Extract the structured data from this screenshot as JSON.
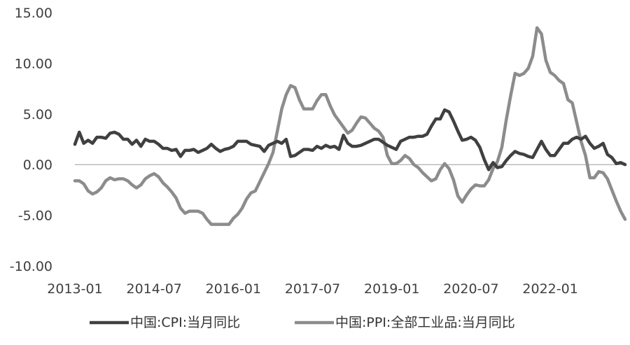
{
  "chart_data": {
    "type": "line",
    "title": "",
    "xlabel": "",
    "ylabel": "",
    "ylim": [
      -10,
      15
    ],
    "yticks": [
      15,
      10,
      5,
      0,
      -5,
      -10
    ],
    "ytick_labels": [
      "15.00",
      "10.00",
      "5.00",
      "0.00",
      "-5.00",
      "-10.00"
    ],
    "xticks": [
      "2013-01",
      "2014-07",
      "2016-01",
      "2017-07",
      "2019-01",
      "2020-07",
      "2022-01"
    ],
    "x_start": "2013-01",
    "x_end": "2023-05",
    "grid": false,
    "legend_position": "bottom",
    "series": [
      {
        "name": "中国:CPI:当月同比",
        "color": "#404040",
        "points": [
          [
            "2013-01",
            2.0
          ],
          [
            "2013-02",
            3.2
          ],
          [
            "2013-03",
            2.1
          ],
          [
            "2013-04",
            2.4
          ],
          [
            "2013-05",
            2.1
          ],
          [
            "2013-06",
            2.7
          ],
          [
            "2013-07",
            2.7
          ],
          [
            "2013-08",
            2.6
          ],
          [
            "2013-09",
            3.1
          ],
          [
            "2013-10",
            3.2
          ],
          [
            "2013-11",
            3.0
          ],
          [
            "2013-12",
            2.5
          ],
          [
            "2014-01",
            2.5
          ],
          [
            "2014-02",
            2.0
          ],
          [
            "2014-03",
            2.4
          ],
          [
            "2014-04",
            1.8
          ],
          [
            "2014-05",
            2.5
          ],
          [
            "2014-06",
            2.3
          ],
          [
            "2014-07",
            2.3
          ],
          [
            "2014-08",
            2.0
          ],
          [
            "2014-09",
            1.6
          ],
          [
            "2014-10",
            1.6
          ],
          [
            "2014-11",
            1.4
          ],
          [
            "2014-12",
            1.5
          ],
          [
            "2015-01",
            0.8
          ],
          [
            "2015-02",
            1.4
          ],
          [
            "2015-03",
            1.4
          ],
          [
            "2015-04",
            1.5
          ],
          [
            "2015-05",
            1.2
          ],
          [
            "2015-06",
            1.4
          ],
          [
            "2015-07",
            1.6
          ],
          [
            "2015-08",
            2.0
          ],
          [
            "2015-09",
            1.6
          ],
          [
            "2015-10",
            1.3
          ],
          [
            "2015-11",
            1.5
          ],
          [
            "2015-12",
            1.6
          ],
          [
            "2016-01",
            1.8
          ],
          [
            "2016-02",
            2.3
          ],
          [
            "2016-03",
            2.3
          ],
          [
            "2016-04",
            2.3
          ],
          [
            "2016-05",
            2.0
          ],
          [
            "2016-06",
            1.9
          ],
          [
            "2016-07",
            1.8
          ],
          [
            "2016-08",
            1.3
          ],
          [
            "2016-09",
            1.9
          ],
          [
            "2016-10",
            2.1
          ],
          [
            "2016-11",
            2.3
          ],
          [
            "2016-12",
            2.1
          ],
          [
            "2017-01",
            2.5
          ],
          [
            "2017-02",
            0.8
          ],
          [
            "2017-03",
            0.9
          ],
          [
            "2017-04",
            1.2
          ],
          [
            "2017-05",
            1.5
          ],
          [
            "2017-06",
            1.5
          ],
          [
            "2017-07",
            1.4
          ],
          [
            "2017-08",
            1.8
          ],
          [
            "2017-09",
            1.6
          ],
          [
            "2017-10",
            1.9
          ],
          [
            "2017-11",
            1.7
          ],
          [
            "2017-12",
            1.8
          ],
          [
            "2018-01",
            1.5
          ],
          [
            "2018-02",
            2.9
          ],
          [
            "2018-03",
            2.1
          ],
          [
            "2018-04",
            1.8
          ],
          [
            "2018-05",
            1.8
          ],
          [
            "2018-06",
            1.9
          ],
          [
            "2018-07",
            2.1
          ],
          [
            "2018-08",
            2.3
          ],
          [
            "2018-09",
            2.5
          ],
          [
            "2018-10",
            2.5
          ],
          [
            "2018-11",
            2.2
          ],
          [
            "2018-12",
            1.9
          ],
          [
            "2019-01",
            1.7
          ],
          [
            "2019-02",
            1.5
          ],
          [
            "2019-03",
            2.3
          ],
          [
            "2019-04",
            2.5
          ],
          [
            "2019-05",
            2.7
          ],
          [
            "2019-06",
            2.7
          ],
          [
            "2019-07",
            2.8
          ],
          [
            "2019-08",
            2.8
          ],
          [
            "2019-09",
            3.0
          ],
          [
            "2019-10",
            3.8
          ],
          [
            "2019-11",
            4.5
          ],
          [
            "2019-12",
            4.5
          ],
          [
            "2020-01",
            5.4
          ],
          [
            "2020-02",
            5.2
          ],
          [
            "2020-03",
            4.3
          ],
          [
            "2020-04",
            3.3
          ],
          [
            "2020-05",
            2.4
          ],
          [
            "2020-06",
            2.5
          ],
          [
            "2020-07",
            2.7
          ],
          [
            "2020-08",
            2.4
          ],
          [
            "2020-09",
            1.7
          ],
          [
            "2020-10",
            0.5
          ],
          [
            "2020-11",
            -0.5
          ],
          [
            "2020-12",
            0.2
          ],
          [
            "2021-01",
            -0.3
          ],
          [
            "2021-02",
            -0.2
          ],
          [
            "2021-03",
            0.4
          ],
          [
            "2021-04",
            0.9
          ],
          [
            "2021-05",
            1.3
          ],
          [
            "2021-06",
            1.1
          ],
          [
            "2021-07",
            1.0
          ],
          [
            "2021-08",
            0.8
          ],
          [
            "2021-09",
            0.7
          ],
          [
            "2021-10",
            1.5
          ],
          [
            "2021-11",
            2.3
          ],
          [
            "2021-12",
            1.5
          ],
          [
            "2022-01",
            0.9
          ],
          [
            "2022-02",
            0.9
          ],
          [
            "2022-03",
            1.5
          ],
          [
            "2022-04",
            2.1
          ],
          [
            "2022-05",
            2.1
          ],
          [
            "2022-06",
            2.5
          ],
          [
            "2022-07",
            2.7
          ],
          [
            "2022-08",
            2.5
          ],
          [
            "2022-09",
            2.8
          ],
          [
            "2022-10",
            2.1
          ],
          [
            "2022-11",
            1.6
          ],
          [
            "2022-12",
            1.8
          ],
          [
            "2023-01",
            2.1
          ],
          [
            "2023-02",
            1.0
          ],
          [
            "2023-03",
            0.7
          ],
          [
            "2023-04",
            0.1
          ],
          [
            "2023-05",
            0.2
          ],
          [
            "2023-06",
            0.0
          ]
        ]
      },
      {
        "name": "中国:PPI:全部工业品:当月同比",
        "color": "#8c8c8c",
        "points": [
          [
            "2013-01",
            -1.6
          ],
          [
            "2013-02",
            -1.6
          ],
          [
            "2013-03",
            -1.9
          ],
          [
            "2013-04",
            -2.6
          ],
          [
            "2013-05",
            -2.9
          ],
          [
            "2013-06",
            -2.7
          ],
          [
            "2013-07",
            -2.3
          ],
          [
            "2013-08",
            -1.6
          ],
          [
            "2013-09",
            -1.3
          ],
          [
            "2013-10",
            -1.5
          ],
          [
            "2013-11",
            -1.4
          ],
          [
            "2013-12",
            -1.4
          ],
          [
            "2014-01",
            -1.6
          ],
          [
            "2014-02",
            -2.0
          ],
          [
            "2014-03",
            -2.3
          ],
          [
            "2014-04",
            -2.0
          ],
          [
            "2014-05",
            -1.4
          ],
          [
            "2014-06",
            -1.1
          ],
          [
            "2014-07",
            -0.9
          ],
          [
            "2014-08",
            -1.2
          ],
          [
            "2014-09",
            -1.8
          ],
          [
            "2014-10",
            -2.2
          ],
          [
            "2014-11",
            -2.7
          ],
          [
            "2014-12",
            -3.3
          ],
          [
            "2015-01",
            -4.3
          ],
          [
            "2015-02",
            -4.8
          ],
          [
            "2015-03",
            -4.6
          ],
          [
            "2015-04",
            -4.6
          ],
          [
            "2015-05",
            -4.6
          ],
          [
            "2015-06",
            -4.8
          ],
          [
            "2015-07",
            -5.4
          ],
          [
            "2015-08",
            -5.9
          ],
          [
            "2015-09",
            -5.9
          ],
          [
            "2015-10",
            -5.9
          ],
          [
            "2015-11",
            -5.9
          ],
          [
            "2015-12",
            -5.9
          ],
          [
            "2016-01",
            -5.3
          ],
          [
            "2016-02",
            -4.9
          ],
          [
            "2016-03",
            -4.3
          ],
          [
            "2016-04",
            -3.4
          ],
          [
            "2016-05",
            -2.8
          ],
          [
            "2016-06",
            -2.6
          ],
          [
            "2016-07",
            -1.7
          ],
          [
            "2016-08",
            -0.8
          ],
          [
            "2016-09",
            0.1
          ],
          [
            "2016-10",
            1.2
          ],
          [
            "2016-11",
            3.3
          ],
          [
            "2016-12",
            5.5
          ],
          [
            "2017-01",
            6.9
          ],
          [
            "2017-02",
            7.8
          ],
          [
            "2017-03",
            7.6
          ],
          [
            "2017-04",
            6.4
          ],
          [
            "2017-05",
            5.5
          ],
          [
            "2017-06",
            5.5
          ],
          [
            "2017-07",
            5.5
          ],
          [
            "2017-08",
            6.3
          ],
          [
            "2017-09",
            6.9
          ],
          [
            "2017-10",
            6.9
          ],
          [
            "2017-11",
            5.8
          ],
          [
            "2017-12",
            4.9
          ],
          [
            "2018-01",
            4.3
          ],
          [
            "2018-02",
            3.7
          ],
          [
            "2018-03",
            3.1
          ],
          [
            "2018-04",
            3.4
          ],
          [
            "2018-05",
            4.1
          ],
          [
            "2018-06",
            4.7
          ],
          [
            "2018-07",
            4.6
          ],
          [
            "2018-08",
            4.1
          ],
          [
            "2018-09",
            3.6
          ],
          [
            "2018-10",
            3.3
          ],
          [
            "2018-11",
            2.7
          ],
          [
            "2018-12",
            0.9
          ],
          [
            "2019-01",
            0.1
          ],
          [
            "2019-02",
            0.1
          ],
          [
            "2019-03",
            0.4
          ],
          [
            "2019-04",
            0.9
          ],
          [
            "2019-05",
            0.6
          ],
          [
            "2019-06",
            0.0
          ],
          [
            "2019-07",
            -0.3
          ],
          [
            "2019-08",
            -0.8
          ],
          [
            "2019-09",
            -1.2
          ],
          [
            "2019-10",
            -1.6
          ],
          [
            "2019-11",
            -1.4
          ],
          [
            "2019-12",
            -0.5
          ],
          [
            "2020-01",
            0.1
          ],
          [
            "2020-02",
            -0.4
          ],
          [
            "2020-03",
            -1.5
          ],
          [
            "2020-04",
            -3.1
          ],
          [
            "2020-05",
            -3.7
          ],
          [
            "2020-06",
            -3.0
          ],
          [
            "2020-07",
            -2.4
          ],
          [
            "2020-08",
            -2.0
          ],
          [
            "2020-09",
            -2.1
          ],
          [
            "2020-10",
            -2.1
          ],
          [
            "2020-11",
            -1.5
          ],
          [
            "2020-12",
            -0.4
          ],
          [
            "2021-01",
            0.3
          ],
          [
            "2021-02",
            1.7
          ],
          [
            "2021-03",
            4.4
          ],
          [
            "2021-04",
            6.8
          ],
          [
            "2021-05",
            9.0
          ],
          [
            "2021-06",
            8.8
          ],
          [
            "2021-07",
            9.0
          ],
          [
            "2021-08",
            9.5
          ],
          [
            "2021-09",
            10.7
          ],
          [
            "2021-10",
            13.5
          ],
          [
            "2021-11",
            12.9
          ],
          [
            "2021-12",
            10.3
          ],
          [
            "2022-01",
            9.1
          ],
          [
            "2022-02",
            8.8
          ],
          [
            "2022-03",
            8.3
          ],
          [
            "2022-04",
            8.0
          ],
          [
            "2022-05",
            6.4
          ],
          [
            "2022-06",
            6.1
          ],
          [
            "2022-07",
            4.2
          ],
          [
            "2022-08",
            2.3
          ],
          [
            "2022-09",
            0.9
          ],
          [
            "2022-10",
            -1.3
          ],
          [
            "2022-11",
            -1.3
          ],
          [
            "2022-12",
            -0.7
          ],
          [
            "2023-01",
            -0.8
          ],
          [
            "2023-02",
            -1.4
          ],
          [
            "2023-03",
            -2.5
          ],
          [
            "2023-04",
            -3.6
          ],
          [
            "2023-05",
            -4.6
          ],
          [
            "2023-06",
            -5.4
          ]
        ]
      }
    ]
  }
}
